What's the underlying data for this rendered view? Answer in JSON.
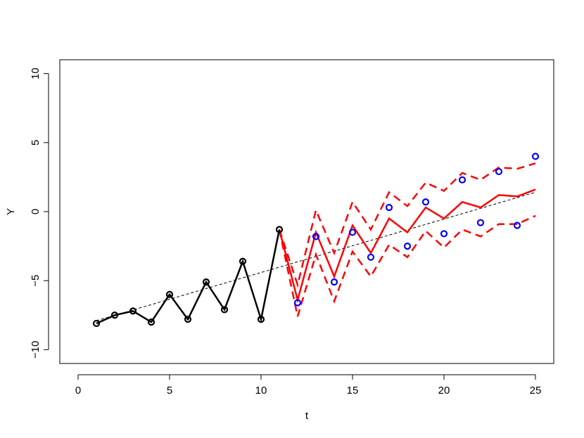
{
  "chart_data": {
    "type": "line",
    "title": "",
    "xlabel": "t",
    "ylabel": "Y",
    "xlim": [
      0,
      25
    ],
    "ylim": [
      -11,
      11
    ],
    "x_ticks": [
      0,
      5,
      10,
      15,
      20,
      25
    ],
    "x_tick_labels": [
      "0",
      "5",
      "10",
      "15",
      "20",
      "25"
    ],
    "y_ticks": [
      -10,
      -5,
      0,
      5,
      10
    ],
    "y_tick_labels": [
      "−10",
      "−5",
      "0",
      "5",
      "10"
    ],
    "grid": false,
    "colors": {
      "observed": "#000000",
      "forecast": "#ff0000",
      "actual": "#0000ff",
      "trend": "#000000"
    },
    "series": [
      {
        "style": "black line with open circles",
        "x": [
          1,
          2,
          3,
          4,
          5,
          6,
          7,
          8,
          9,
          10,
          11
        ],
        "y": [
          -8.1,
          -7.5,
          -7.2,
          -8.0,
          -6.0,
          -7.8,
          -5.1,
          -7.1,
          -3.6,
          -7.8,
          -1.3
        ]
      },
      {
        "style": "red solid line",
        "x": [
          11,
          12,
          13,
          14,
          15,
          16,
          17,
          18,
          19,
          20,
          21,
          22,
          23,
          24,
          25
        ],
        "y": [
          -1.3,
          -6.4,
          -1.5,
          -4.7,
          -1.0,
          -3.0,
          -0.5,
          -1.5,
          0.3,
          -0.5,
          0.7,
          0.3,
          1.2,
          1.1,
          1.6
        ]
      },
      {
        "style": "red dashed upper band",
        "x": [
          11,
          12,
          13,
          14,
          15,
          16,
          17,
          18,
          19,
          20,
          21,
          22,
          23,
          24,
          25
        ],
        "y": [
          -1.3,
          -5.3,
          0.1,
          -3.0,
          0.7,
          -1.3,
          1.4,
          0.4,
          2.1,
          1.5,
          2.8,
          2.3,
          3.2,
          3.1,
          3.5
        ]
      },
      {
        "style": "red dashed lower band",
        "x": [
          11,
          12,
          13,
          14,
          15,
          16,
          17,
          18,
          19,
          20,
          21,
          22,
          23,
          24,
          25
        ],
        "y": [
          -1.3,
          -7.6,
          -3.1,
          -6.5,
          -2.9,
          -4.7,
          -2.4,
          -3.3,
          -1.4,
          -2.6,
          -1.3,
          -1.8,
          -0.9,
          -0.9,
          -0.3
        ]
      },
      {
        "style": "blue open circles",
        "x": [
          12,
          13,
          14,
          15,
          16,
          17,
          18,
          19,
          20,
          21,
          22,
          23,
          24,
          25
        ],
        "y": [
          -6.6,
          -1.8,
          -5.1,
          -1.5,
          -3.3,
          0.3,
          -2.5,
          0.7,
          -1.6,
          2.3,
          -0.8,
          2.9,
          -1.0,
          4.0
        ]
      },
      {
        "style": "black dashed trend line",
        "x": [
          1,
          25
        ],
        "y": [
          -7.9,
          1.4
        ]
      }
    ]
  }
}
